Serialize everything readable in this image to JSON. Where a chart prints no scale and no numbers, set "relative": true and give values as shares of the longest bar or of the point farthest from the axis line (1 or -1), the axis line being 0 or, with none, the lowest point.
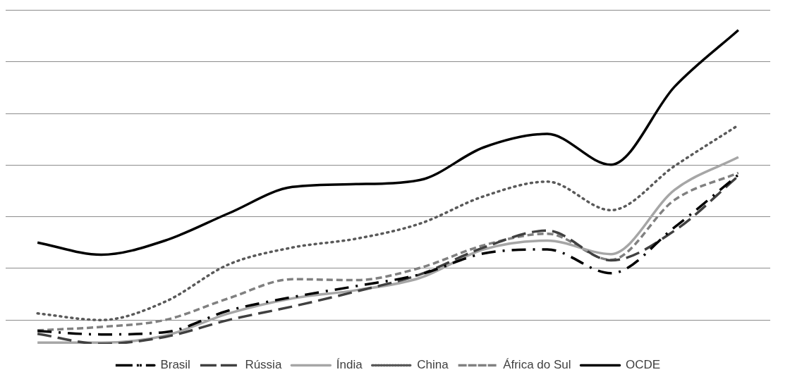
{
  "chart_data": {
    "type": "line",
    "relative": true,
    "categories": [
      null,
      null,
      null,
      null,
      null,
      null,
      null,
      null,
      null,
      null,
      null,
      null
    ],
    "grid": "y",
    "legend": "bottom",
    "series": [
      {
        "name": "Brasil",
        "color": "#000000",
        "line_style": "dashdot",
        "values": [
          0.041,
          0.03,
          0.037,
          0.106,
          0.149,
          0.184,
          0.221,
          0.288,
          0.301,
          0.225,
          0.372,
          0.539
        ]
      },
      {
        "name": "Rússia",
        "color": "#404040",
        "line_style": "longdash",
        "values": [
          0.032,
          0,
          0.022,
          0.076,
          0.119,
          0.167,
          0.221,
          0.307,
          0.361,
          0.266,
          0.361,
          0.535
        ]
      },
      {
        "name": "Índia",
        "color": "#a6a6a6",
        "line_style": "solid",
        "values": [
          0.004,
          0.004,
          0.026,
          0.097,
          0.145,
          0.171,
          0.21,
          0.301,
          0.329,
          0.286,
          0.491,
          0.595
        ]
      },
      {
        "name": "China",
        "color": "#595959",
        "line_style": "dotted",
        "values": [
          0.097,
          0.076,
          0.134,
          0.253,
          0.307,
          0.335,
          0.383,
          0.47,
          0.517,
          0.426,
          0.567,
          0.697
        ]
      },
      {
        "name": "África do Sul",
        "color": "#808080",
        "line_style": "dashed",
        "values": [
          0.043,
          0.054,
          0.076,
          0.145,
          0.206,
          0.203,
          0.242,
          0.314,
          0.351,
          0.268,
          0.459,
          0.545
        ]
      },
      {
        "name": "OCDE",
        "color": "#000000",
        "line_style": "solid",
        "values": [
          0.323,
          0.284,
          0.329,
          0.416,
          0.5,
          0.509,
          0.522,
          0.626,
          0.669,
          0.571,
          0.82,
          1
        ]
      }
    ]
  }
}
